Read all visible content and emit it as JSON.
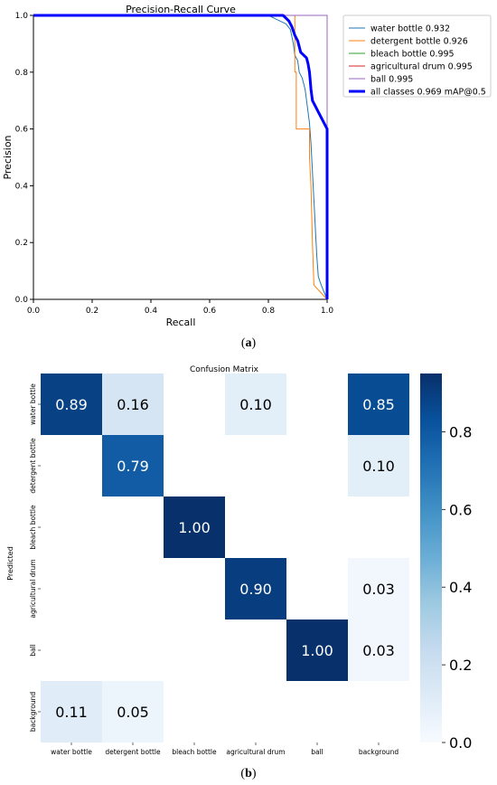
{
  "captions": {
    "a_open": "(",
    "a_letter": "a",
    "a_close": ")",
    "b_open": "(",
    "b_letter": "b",
    "b_close": ")"
  },
  "chart_data": [
    {
      "type": "line",
      "title": "Precision-Recall Curve",
      "xlabel": "Recall",
      "ylabel": "Precision",
      "xlim": [
        0.0,
        1.0
      ],
      "ylim": [
        0.0,
        1.0
      ],
      "xticks": [
        "0.0",
        "0.2",
        "0.4",
        "0.6",
        "0.8",
        "1.0"
      ],
      "yticks": [
        "0.0",
        "0.2",
        "0.4",
        "0.6",
        "0.8",
        "1.0"
      ],
      "grid": false,
      "legend_position": "outside-right",
      "series": [
        {
          "name": "water bottle 0.932",
          "color": "#1f77b4",
          "width": 1,
          "points": [
            [
              0,
              1
            ],
            [
              0.8,
              1
            ],
            [
              0.82,
              0.99
            ],
            [
              0.84,
              0.98
            ],
            [
              0.86,
              0.97
            ],
            [
              0.875,
              0.95
            ],
            [
              0.885,
              0.9
            ],
            [
              0.89,
              0.86
            ],
            [
              0.9,
              0.84
            ],
            [
              0.905,
              0.8
            ],
            [
              0.915,
              0.78
            ],
            [
              0.925,
              0.74
            ],
            [
              0.93,
              0.7
            ],
            [
              0.935,
              0.66
            ],
            [
              0.94,
              0.62
            ],
            [
              0.945,
              0.55
            ],
            [
              0.95,
              0.45
            ],
            [
              0.955,
              0.35
            ],
            [
              0.96,
              0.25
            ],
            [
              0.965,
              0.15
            ],
            [
              0.97,
              0.08
            ],
            [
              0.98,
              0.05
            ],
            [
              1.0,
              0.0
            ]
          ]
        },
        {
          "name": "detergent bottle 0.926",
          "color": "#ff7f0e",
          "width": 1,
          "points": [
            [
              0,
              1
            ],
            [
              0.89,
              1
            ],
            [
              0.89,
              0.8
            ],
            [
              0.895,
              0.8
            ],
            [
              0.895,
              0.6
            ],
            [
              0.94,
              0.6
            ],
            [
              0.94,
              0.5
            ],
            [
              0.945,
              0.4
            ],
            [
              0.95,
              0.2
            ],
            [
              0.955,
              0.05
            ],
            [
              1.0,
              0.0
            ]
          ]
        },
        {
          "name": "bleach bottle 0.995",
          "color": "#2ca02c",
          "width": 1,
          "points": [
            [
              0,
              1
            ],
            [
              1.0,
              1
            ],
            [
              1.0,
              0.0
            ]
          ]
        },
        {
          "name": "agricultural drum 0.995",
          "color": "#d62728",
          "width": 1,
          "points": [
            [
              0,
              1
            ],
            [
              1.0,
              1
            ],
            [
              1.0,
              0.0
            ]
          ]
        },
        {
          "name": "ball 0.995",
          "color": "#9467bd",
          "width": 1,
          "points": [
            [
              0,
              1
            ],
            [
              1.0,
              1
            ],
            [
              1.0,
              0.0
            ]
          ]
        },
        {
          "name": "all classes 0.969 mAP@0.5",
          "color": "#0000ff",
          "width": 3,
          "points": [
            [
              0,
              1
            ],
            [
              0.85,
              1
            ],
            [
              0.86,
              0.99
            ],
            [
              0.87,
              0.98
            ],
            [
              0.88,
              0.96
            ],
            [
              0.89,
              0.93
            ],
            [
              0.9,
              0.91
            ],
            [
              0.905,
              0.89
            ],
            [
              0.91,
              0.87
            ],
            [
              0.92,
              0.86
            ],
            [
              0.93,
              0.85
            ],
            [
              0.935,
              0.83
            ],
            [
              0.94,
              0.8
            ],
            [
              0.945,
              0.74
            ],
            [
              0.95,
              0.7
            ],
            [
              0.96,
              0.68
            ],
            [
              0.97,
              0.66
            ],
            [
              0.98,
              0.64
            ],
            [
              0.99,
              0.62
            ],
            [
              1.0,
              0.6
            ],
            [
              1.0,
              0.0
            ]
          ]
        }
      ]
    },
    {
      "type": "heatmap",
      "title": "Confusion Matrix",
      "ylabel": "Predicted",
      "rows": [
        "water bottle",
        "detergent bottle",
        "bleach bottle",
        "agricultural drum",
        "ball",
        "background"
      ],
      "columns": [
        "water bottle",
        "detergent bottle",
        "bleach bottle",
        "agricultural drum",
        "ball",
        "background"
      ],
      "values": [
        [
          0.89,
          0.16,
          null,
          0.1,
          null,
          0.85
        ],
        [
          null,
          0.79,
          null,
          null,
          null,
          0.1
        ],
        [
          null,
          null,
          1.0,
          null,
          null,
          null
        ],
        [
          null,
          null,
          null,
          0.9,
          null,
          0.03
        ],
        [
          null,
          null,
          null,
          null,
          1.0,
          0.03
        ],
        [
          0.11,
          0.05,
          null,
          null,
          null,
          null
        ]
      ],
      "colorbar": {
        "min": 0.0,
        "max": 0.95,
        "ticks": [
          "0.0",
          "0.2",
          "0.4",
          "0.6",
          "0.8"
        ],
        "tick_values": [
          0.0,
          0.2,
          0.4,
          0.6,
          0.8
        ],
        "colormap": "Blues"
      }
    }
  ]
}
